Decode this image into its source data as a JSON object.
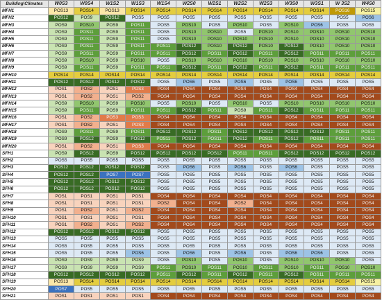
{
  "corner_label": "Building\\Climates",
  "columns": [
    "W0S3",
    "W0S4",
    "W1S2",
    "W1S3",
    "W1S4",
    "W2S0",
    "W2S1",
    "W2S2",
    "W2S3",
    "W3S0",
    "W3S1",
    "W 3S2",
    "W4S0"
  ],
  "rows": [
    {
      "label": "MFH1",
      "cells": [
        "POS13",
        "POS14",
        "POS13",
        "POS14",
        "POS14",
        "POS14",
        "POS14",
        "POS14",
        "POS14",
        "POS14",
        "POS14",
        "POS16",
        "POS15"
      ]
    },
    {
      "label": "MFH2",
      "cells": [
        "POS12",
        "POS9",
        "POS12",
        "POS5",
        "POS5",
        "POS5",
        "POS5",
        "POS5",
        "POS5",
        "POS5",
        "POS5",
        "POS5",
        "POS6"
      ]
    },
    {
      "label": "MFH3",
      "cells": [
        "POS9",
        "POS10",
        "POS9",
        "POS11",
        "POS5",
        "POS10",
        "POS5",
        "POS10",
        "POS5",
        "POS10",
        "POS6",
        "POS5",
        "POS5"
      ]
    },
    {
      "label": "MFH4",
      "cells": [
        "POS9",
        "POS11",
        "POS9",
        "POS11",
        "POS5",
        "POS10",
        "POS10",
        "POS5",
        "POS10",
        "POS10",
        "POS10",
        "POS10",
        "POS10"
      ]
    },
    {
      "label": "MFH5",
      "cells": [
        "POS9",
        "POS11",
        "POS9",
        "POS11",
        "POS5",
        "POS10",
        "POS10",
        "POS10",
        "POS10",
        "POS10",
        "POS10",
        "POS10",
        "POS10"
      ]
    },
    {
      "label": "MFH6",
      "cells": [
        "POS9",
        "POS11",
        "POS9",
        "POS11",
        "POS11",
        "POS12",
        "POS10",
        "POS12",
        "POS10",
        "POS12",
        "POS10",
        "POS10",
        "POS10"
      ]
    },
    {
      "label": "MFH7",
      "cells": [
        "POS9",
        "POS11",
        "POS9",
        "POS11",
        "POS11",
        "POS12",
        "POS11",
        "POS12",
        "POS11",
        "POS12",
        "POS11",
        "POS11",
        "POS11"
      ]
    },
    {
      "label": "MFH8",
      "cells": [
        "POS9",
        "POS10",
        "POS9",
        "POS10",
        "POS5",
        "POS10",
        "POS10",
        "POS10",
        "POS10",
        "POS10",
        "POS10",
        "POS10",
        "POS10"
      ]
    },
    {
      "label": "MFH9",
      "cells": [
        "POS9",
        "POS11",
        "POS9",
        "POS11",
        "POS11",
        "POS12",
        "POS11",
        "POS12",
        "POS11",
        "POS12",
        "POS11",
        "POS11",
        "POS11"
      ]
    },
    {
      "label": "MFH10",
      "cells": [
        "POS14",
        "POS14",
        "POS14",
        "POS14",
        "POS14",
        "POS14",
        "POS14",
        "POS14",
        "POS14",
        "POS14",
        "POS14",
        "POS14",
        "POS14"
      ]
    },
    {
      "label": "MFH11",
      "cells": [
        "POS12",
        "POS12",
        "POS12",
        "POS12",
        "POS5",
        "POS6",
        "POS5",
        "POS6",
        "POS5",
        "POS6",
        "POS5",
        "POS5",
        "POS5"
      ]
    },
    {
      "label": "MFH12",
      "cells": [
        "POS1",
        "POS2",
        "POS1",
        "POS3",
        "POS4",
        "POS4",
        "POS4",
        "POS4",
        "POS4",
        "POS4",
        "POS4",
        "POS4",
        "POS4"
      ]
    },
    {
      "label": "MFH13",
      "cells": [
        "POS1",
        "POS2",
        "POS1",
        "POS2",
        "POS4",
        "POS4",
        "POS4",
        "POS4",
        "POS4",
        "POS4",
        "POS4",
        "POS4",
        "POS4"
      ]
    },
    {
      "label": "MFH14",
      "cells": [
        "POS9",
        "POS10",
        "POS9",
        "POS10",
        "POS5",
        "POS10",
        "POS5",
        "POS10",
        "POS5",
        "POS10",
        "POS10",
        "POS10",
        "POS10"
      ]
    },
    {
      "label": "MFH15",
      "cells": [
        "POS9",
        "POS11",
        "POS9",
        "POS11",
        "POS11",
        "POS12",
        "POS11",
        "POS9",
        "POS11",
        "POS12",
        "POS11",
        "POS11",
        "POS11"
      ]
    },
    {
      "label": "MFH16",
      "cells": [
        "POS1",
        "POS2",
        "POS3",
        "POS3",
        "POS4",
        "POS4",
        "POS4",
        "POS4",
        "POS4",
        "POS4",
        "POS4",
        "POS4",
        "POS4"
      ]
    },
    {
      "label": "MFH17",
      "cells": [
        "POS1",
        "POS2",
        "POS1",
        "POS3",
        "POS4",
        "POS4",
        "POS4",
        "POS4",
        "POS4",
        "POS4",
        "POS4",
        "POS4",
        "POS4"
      ]
    },
    {
      "label": "MFH18",
      "cells": [
        "POS9",
        "POS11",
        "POS9",
        "POS11",
        "POS12",
        "POS12",
        "POS11",
        "POS12",
        "POS12",
        "POS12",
        "POS12",
        "POS11",
        "POS11"
      ]
    },
    {
      "label": "MFH19",
      "cells": [
        "POS9",
        "POS12",
        "POS9",
        "POS12",
        "POS11",
        "POS12",
        "POS11",
        "POS12",
        "POS11",
        "POS12",
        "POS11",
        "POS11",
        "POS11"
      ]
    },
    {
      "label": "MFH20",
      "cells": [
        "POS1",
        "POS2",
        "POS1",
        "POS3",
        "POS4",
        "POS4",
        "POS4",
        "POS4",
        "POS4",
        "POS4",
        "POS4",
        "POS4",
        "POS4"
      ]
    },
    {
      "label": "SFH1",
      "cells": [
        "POS9",
        "POS12",
        "POS9",
        "POS12",
        "POS12",
        "POS12",
        "POS12",
        "POS11",
        "POS11",
        "POS12",
        "POS12",
        "POS12",
        "POS12"
      ]
    },
    {
      "label": "SFH2",
      "cells": [
        "POS5",
        "POS5",
        "POS5",
        "POS5",
        "POS5",
        "POS5",
        "POS5",
        "POS5",
        "POS5",
        "POS5",
        "POS5",
        "POS5",
        "POS5"
      ]
    },
    {
      "label": "SFH3",
      "cells": [
        "POS12",
        "POS12",
        "POS12",
        "POS12",
        "POS5",
        "POS6",
        "POS5",
        "POS6",
        "POS5",
        "POS6",
        "POS5",
        "POS5",
        "POS5"
      ]
    },
    {
      "label": "SFH4",
      "cells": [
        "POS12",
        "POS12",
        "POS7",
        "POS7",
        "POS5",
        "POS5",
        "POS5",
        "POS5",
        "POS5",
        "POS5",
        "POS5",
        "POS5",
        "POS5"
      ]
    },
    {
      "label": "SFH5",
      "cells": [
        "POS12",
        "POS12",
        "POS12",
        "POS12",
        "POS5",
        "POS5",
        "POS5",
        "POS5",
        "POS5",
        "POS5",
        "POS5",
        "POS5",
        "POS5"
      ]
    },
    {
      "label": "SFH6",
      "cells": [
        "POS12",
        "POS12",
        "POS12",
        "POS12",
        "POS5",
        "POS5",
        "POS5",
        "POS5",
        "POS5",
        "POS5",
        "POS5",
        "POS5",
        "POS5"
      ]
    },
    {
      "label": "SFH7",
      "cells": [
        "POS1",
        "POS1",
        "POS1",
        "POS1",
        "POS4",
        "POS4",
        "POS4",
        "POS4",
        "POS4",
        "POS4",
        "POS4",
        "POS4",
        "POS4"
      ]
    },
    {
      "label": "SFH8",
      "cells": [
        "POS1",
        "POS1",
        "POS1",
        "POS1",
        "POS2",
        "POS4",
        "POS4",
        "POS2",
        "POS4",
        "POS4",
        "POS4",
        "POS4",
        "POS4"
      ]
    },
    {
      "label": "SFH9",
      "cells": [
        "POS1",
        "POS2",
        "POS1",
        "POS2",
        "POS4",
        "POS4",
        "POS4",
        "POS4",
        "POS4",
        "POS4",
        "POS4",
        "POS4",
        "POS4"
      ]
    },
    {
      "label": "SFH10",
      "cells": [
        "POS1",
        "POS1",
        "POS1",
        "POS1",
        "POS4",
        "POS4",
        "POS4",
        "POS4",
        "POS4",
        "POS4",
        "POS4",
        "POS4",
        "POS4"
      ]
    },
    {
      "label": "SFH11",
      "cells": [
        "POS1",
        "POS2",
        "POS1",
        "POS2",
        "POS4",
        "POS4",
        "POS4",
        "POS4",
        "POS4",
        "POS4",
        "POS4",
        "POS4",
        "POS4"
      ]
    },
    {
      "label": "SFH12",
      "cells": [
        "POS12",
        "POS12",
        "POS12",
        "POS12",
        "POS5",
        "POS5",
        "POS5",
        "POS5",
        "POS5",
        "POS5",
        "POS5",
        "POS5",
        "POS5"
      ]
    },
    {
      "label": "SFH13",
      "cells": [
        "POS5",
        "POS5",
        "POS5",
        "POS5",
        "POS5",
        "POS5",
        "POS5",
        "POS5",
        "POS5",
        "POS5",
        "POS5",
        "POS5",
        "POS5"
      ]
    },
    {
      "label": "SFH14",
      "cells": [
        "POS5",
        "POS5",
        "POS5",
        "POS5",
        "POS5",
        "POS5",
        "POS5",
        "POS5",
        "POS5",
        "POS5",
        "POS5",
        "POS5",
        "POS5"
      ]
    },
    {
      "label": "SFH15",
      "cells": [
        "POS5",
        "POS5",
        "POS5",
        "POS6",
        "POS5",
        "POS6",
        "POS5",
        "POS6",
        "POS5",
        "POS6",
        "POS6",
        "POS5",
        "POS5"
      ]
    },
    {
      "label": "SFH16",
      "cells": [
        "POS9",
        "POS9",
        "POS9",
        "POS9",
        "POS5",
        "POS10",
        "POS5",
        "POS10",
        "POS5",
        "POS10",
        "POS10",
        "POS10",
        "POS5"
      ]
    },
    {
      "label": "SFH17",
      "cells": [
        "POS9",
        "POS9",
        "POS9",
        "POS9",
        "POS11",
        "POS10",
        "POS11",
        "POS10",
        "POS11",
        "POS10",
        "POS11",
        "POS10",
        "POS10"
      ]
    },
    {
      "label": "SFH18",
      "cells": [
        "POS12",
        "POS12",
        "POS12",
        "POS12",
        "POS11",
        "POS12",
        "POS11",
        "POS12",
        "POS11",
        "POS12",
        "POS11",
        "POS11",
        "POS11"
      ]
    },
    {
      "label": "SFH19",
      "cells": [
        "POS13",
        "POS14",
        "POS14",
        "POS14",
        "POS14",
        "POS14",
        "POS14",
        "POS14",
        "POS14",
        "POS14",
        "POS14",
        "POS14",
        "POS15"
      ]
    },
    {
      "label": "SFH20",
      "cells": [
        "POS7",
        "POS5",
        "POS5",
        "POS5",
        "POS5",
        "POS5",
        "POS5",
        "POS5",
        "POS5",
        "POS5",
        "POS5",
        "POS5",
        "POS5"
      ]
    },
    {
      "label": "SFH21",
      "cells": [
        "POS1",
        "POS1",
        "POS1",
        "POS1",
        "POS4",
        "POS4",
        "POS4",
        "POS4",
        "POS4",
        "POS4",
        "POS4",
        "POS4",
        "POS4"
      ]
    }
  ],
  "value_colors": {
    "POS1": "#f8d3bd",
    "POS2": "#f2b08e",
    "POS3": "#e07b4a",
    "POS4": "#a24a1c",
    "POS5": "#dde9f5",
    "POS6": "#9dc3e6",
    "POS7": "#3b72bf",
    "POS9": "#c9e3b2",
    "POS10": "#91c66e",
    "POS11": "#5d9e3b",
    "POS12": "#386b24",
    "POS13": "#fbe7a8",
    "POS14": "#e4cd3e",
    "POS15": "#f5f0a0",
    "POS16": "#c09a06"
  }
}
